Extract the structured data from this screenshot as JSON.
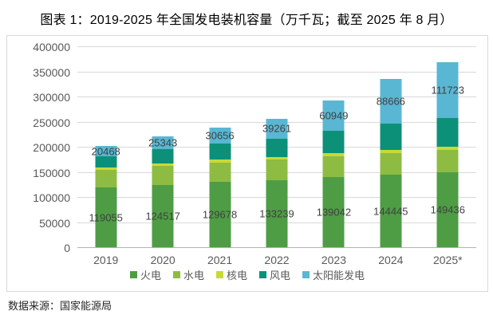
{
  "page": {
    "title": "图表 1：2019-2025 年全国发电装机容量（万千瓦；截至 2025 年 8 月）",
    "source": "数据来源：国家能源局"
  },
  "chart_data": {
    "type": "bar",
    "stacked": true,
    "title": "图表 1：2019-2025 年全国发电装机容量（万千瓦；截至 2025 年 8 月）",
    "unit": "万千瓦",
    "categories": [
      "2019",
      "2020",
      "2021",
      "2022",
      "2023",
      "2024",
      "2025*"
    ],
    "series": [
      {
        "name": "火电",
        "color": "#4e9d45",
        "data_labels": true,
        "values": [
          119055,
          124517,
          129678,
          133239,
          139042,
          144445,
          149436
        ]
      },
      {
        "name": "水电",
        "color": "#8ebc43",
        "data_labels": false,
        "estimated": true,
        "values": [
          35600,
          37000,
          39100,
          41350,
          42150,
          43600,
          44100
        ]
      },
      {
        "name": "核电",
        "color": "#c9d935",
        "data_labels": false,
        "estimated": true,
        "values": [
          4900,
          5000,
          5300,
          5550,
          5700,
          6080,
          6090
        ]
      },
      {
        "name": "风电",
        "color": "#0c9178",
        "data_labels": false,
        "estimated": true,
        "values": [
          21000,
          28150,
          32850,
          36550,
          44130,
          52070,
          57600
        ]
      },
      {
        "name": "太阳能发电",
        "color": "#59b7d3",
        "data_labels": true,
        "values": [
          20468,
          25343,
          30656,
          39261,
          60949,
          88666,
          111723
        ]
      }
    ],
    "ylim": [
      0,
      400000
    ],
    "yticks": [
      0,
      50000,
      100000,
      150000,
      200000,
      250000,
      300000,
      350000,
      400000
    ],
    "grid": true,
    "legend_position": "bottom"
  },
  "style": {
    "grid_color": "#d9d9d9",
    "axis_color": "#b3b3b3",
    "border_color": "#d9d9d9",
    "tick_text_color": "#595959",
    "bar_label_color": "#404040",
    "title_color": "#000000",
    "source_color": "#262626"
  }
}
